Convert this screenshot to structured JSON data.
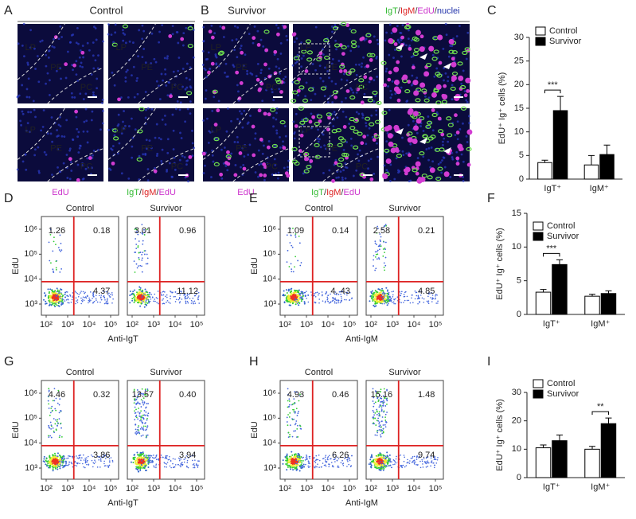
{
  "microscopy": [
    {
      "letter": "A",
      "header": "Control",
      "rows": [
        [
          [
            "LP",
            "PE",
            "PC"
          ],
          [
            "LP",
            "PE",
            "PC"
          ]
        ],
        [
          [
            "LP",
            "PE",
            "PC"
          ],
          [
            "LP",
            "PE",
            "PC"
          ]
        ]
      ],
      "captions": [
        [
          {
            "text": "EdU",
            "color": "#cc33cc"
          }
        ],
        [
          {
            "text": "IgT",
            "color": "#33bb33"
          },
          {
            "text": "/",
            "color": "#333333"
          },
          {
            "text": "IgM",
            "color": "#dd2222"
          },
          {
            "text": "/",
            "color": "#333333"
          },
          {
            "text": "EdU",
            "color": "#cc33cc"
          }
        ]
      ]
    },
    {
      "letter": "B",
      "header": "Survivor",
      "legend": [
        {
          "text": "IgT",
          "color": "#33bb33"
        },
        {
          "text": "/",
          "color": "#333333"
        },
        {
          "text": "IgM",
          "color": "#dd2222"
        },
        {
          "text": "/",
          "color": "#333333"
        },
        {
          "text": "EdU",
          "color": "#cc33cc"
        },
        {
          "text": "/",
          "color": "#333333"
        },
        {
          "text": "nuclei",
          "color": "#2233aa"
        }
      ],
      "rows": [
        [
          [
            "LP",
            "PE",
            "PC"
          ],
          [
            "LP",
            "PE",
            "PC"
          ],
          []
        ],
        [
          [
            "LP",
            "PE",
            "PC"
          ],
          [
            "LP",
            "PE",
            "PC"
          ],
          []
        ]
      ],
      "captions": [
        [
          {
            "text": "EdU",
            "color": "#cc33cc"
          }
        ],
        [
          {
            "text": "IgT",
            "color": "#33bb33"
          },
          {
            "text": "/",
            "color": "#333333"
          },
          {
            "text": "IgM",
            "color": "#dd2222"
          },
          {
            "text": "/",
            "color": "#333333"
          },
          {
            "text": "EdU",
            "color": "#cc33cc"
          }
        ],
        []
      ]
    }
  ],
  "flow": {
    "ylabel": "EdU",
    "xticks": [
      "10²",
      "10³",
      "10⁴",
      "10⁵"
    ],
    "yticks": [
      "10³",
      "10⁴",
      "10⁵",
      "10⁶"
    ],
    "panels": [
      {
        "letter": "D",
        "xlabel": "Anti-IgT",
        "plots": [
          {
            "title": "Control",
            "quadrants": [
              "1.26",
              "0.18",
              "4.37"
            ]
          },
          {
            "title": "Survivor",
            "quadrants": [
              "3.01",
              "0.96",
              "11.12"
            ]
          }
        ]
      },
      {
        "letter": "E",
        "xlabel": "Anti-IgM",
        "plots": [
          {
            "title": "Control",
            "quadrants": [
              "1.09",
              "0.14",
              "4. 43"
            ]
          },
          {
            "title": "Survivor",
            "quadrants": [
              "2.58",
              "0.21",
              "4.85"
            ]
          }
        ]
      },
      {
        "letter": "G",
        "xlabel": "Anti-IgT",
        "plots": [
          {
            "title": "Control",
            "quadrants": [
              "4.46",
              "0.32",
              "3.86"
            ]
          },
          {
            "title": "Survivor",
            "quadrants": [
              "13.57",
              "0.40",
              "3.94"
            ]
          }
        ]
      },
      {
        "letter": "H",
        "xlabel": "Anti-IgM",
        "plots": [
          {
            "title": "Control",
            "quadrants": [
              "4.93",
              "0.46",
              "6.26"
            ]
          },
          {
            "title": "Survivor",
            "quadrants": [
              "15.16",
              "1.48",
              "9.74"
            ]
          }
        ]
      }
    ]
  },
  "chart_data": [
    {
      "type": "bar",
      "letter": "C",
      "ylabel": "EdU⁺ Ig⁺ cells (%)",
      "categories": [
        "IgT⁺",
        "IgM⁺"
      ],
      "series": [
        {
          "name": "Control",
          "color": "#ffffff",
          "values": [
            3.5,
            3
          ],
          "errors": [
            0.5,
            2
          ]
        },
        {
          "name": "Survivor",
          "color": "#000000",
          "values": [
            14.5,
            5.2
          ],
          "errors": [
            3,
            2
          ]
        }
      ],
      "ylim": [
        0,
        30
      ],
      "yticks": [
        0,
        5,
        10,
        15,
        20,
        25,
        30
      ],
      "annotation": "***"
    },
    {
      "type": "bar",
      "letter": "F",
      "ylabel": "EdU⁺ Ig⁺ cells (%)",
      "categories": [
        "IgT⁺",
        "IgM⁺"
      ],
      "series": [
        {
          "name": "Control",
          "color": "#ffffff",
          "values": [
            3.3,
            2.7
          ],
          "errors": [
            0.4,
            0.3
          ]
        },
        {
          "name": "Survivor",
          "color": "#000000",
          "values": [
            7.4,
            3.1
          ],
          "errors": [
            0.7,
            0.4
          ]
        }
      ],
      "ylim": [
        0,
        15
      ],
      "yticks": [
        0,
        5,
        10,
        15
      ],
      "annotation": "***"
    },
    {
      "type": "bar",
      "letter": "I",
      "ylabel": "EdU⁺ Ig⁺ cells (%)",
      "categories": [
        "IgT⁺",
        "IgM⁺"
      ],
      "series": [
        {
          "name": "Control",
          "color": "#ffffff",
          "values": [
            10.5,
            10
          ],
          "errors": [
            1,
            1
          ]
        },
        {
          "name": "Survivor",
          "color": "#000000",
          "values": [
            13,
            19
          ],
          "errors": [
            2,
            2
          ]
        }
      ],
      "ylim": [
        0,
        30
      ],
      "yticks": [
        0,
        10,
        20,
        30
      ],
      "annotation": "**"
    }
  ]
}
